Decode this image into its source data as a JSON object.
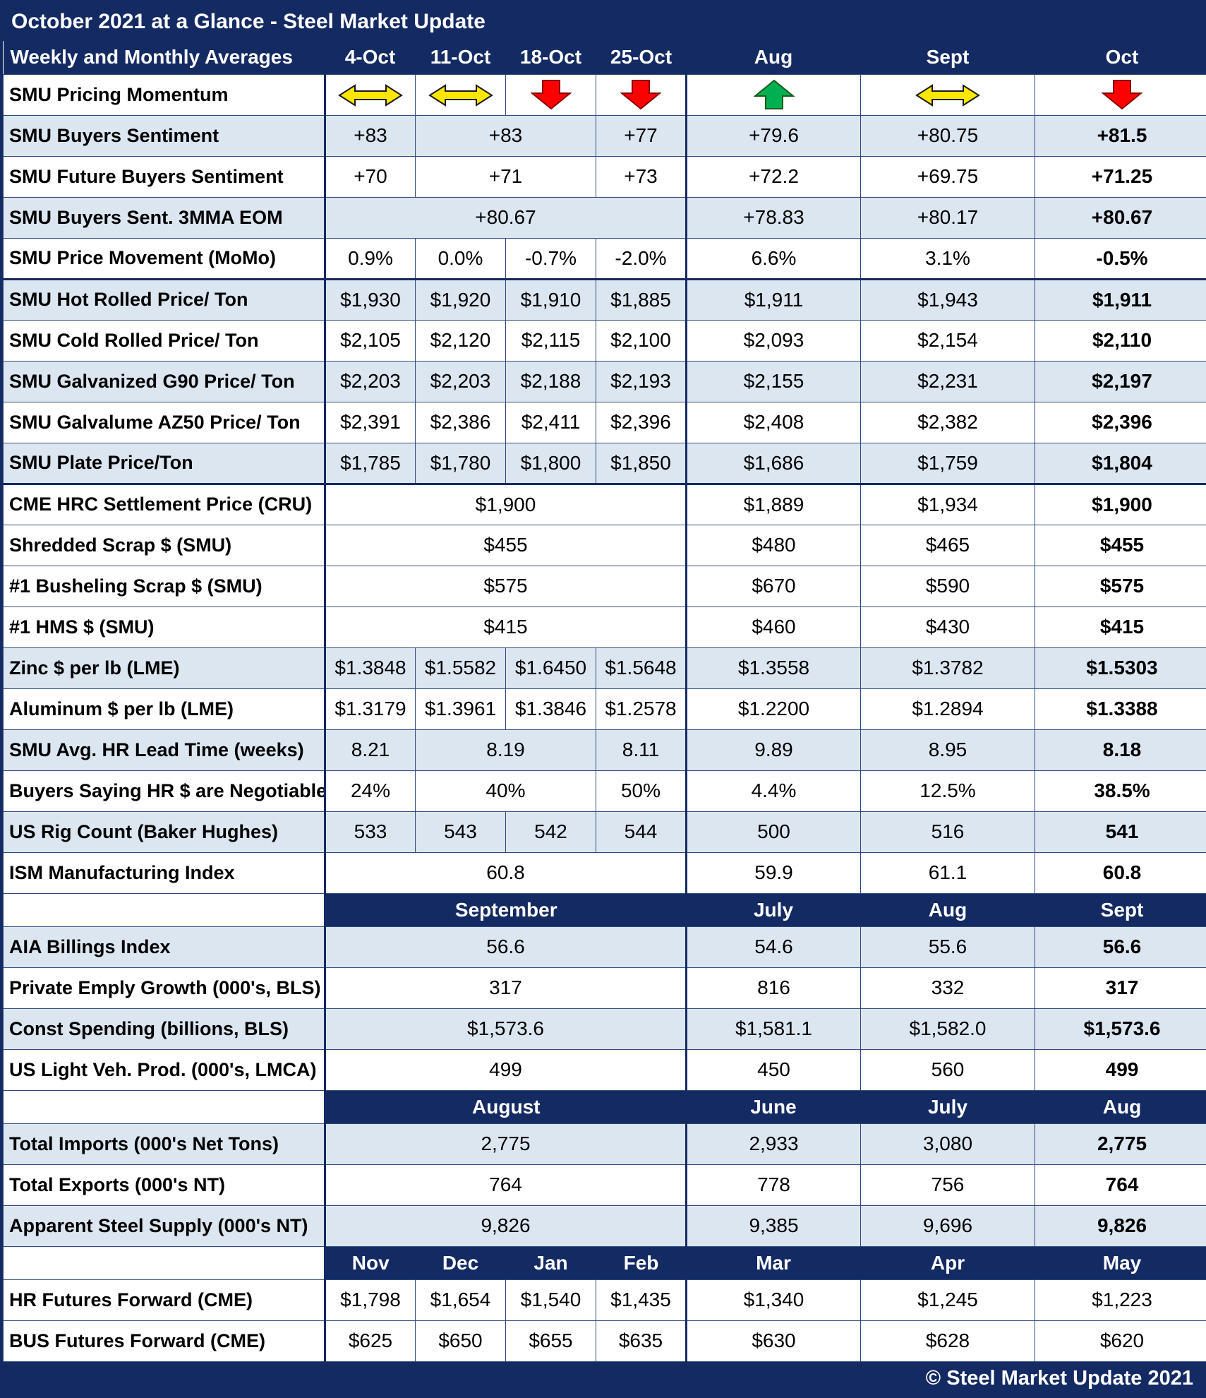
{
  "title": "October 2021 at a Glance - Steel Market Update",
  "footer": "© Steel Market Update 2021",
  "colors": {
    "navy": "#142a63",
    "band_blue": "#dce6f1",
    "arrow_yellow": "#ffe600",
    "arrow_red": "#ff0000",
    "arrow_green": "#00b050"
  },
  "chart_data": {
    "type": "table",
    "title": "October 2021 at a Glance - Steel Market Update",
    "sections": [
      {
        "header": {
          "label": "Weekly and Monthly Averages",
          "label_on_navy": true,
          "cells": [
            {
              "t": "4-Oct"
            },
            {
              "t": "11-Oct"
            },
            {
              "t": "18-Oct"
            },
            {
              "t": "25-Oct"
            },
            {
              "t": "Aug"
            },
            {
              "t": "Sept"
            },
            {
              "t": "Oct"
            }
          ]
        },
        "rows": [
          {
            "label": "SMU Pricing Momentum",
            "band": false,
            "cells": [
              {
                "icon": "sideways-yellow"
              },
              {
                "icon": "sideways-yellow"
              },
              {
                "icon": "down-red"
              },
              {
                "icon": "down-red"
              },
              {
                "icon": "up-green"
              },
              {
                "icon": "sideways-yellow"
              },
              {
                "icon": "down-red"
              }
            ]
          },
          {
            "label": "SMU Buyers Sentiment",
            "band": true,
            "cells": [
              {
                "t": "+83"
              },
              {
                "t": "+83",
                "span": 2
              },
              {
                "t": "+77"
              },
              {
                "t": "+79.6"
              },
              {
                "t": "+80.75"
              },
              {
                "t": "+81.5",
                "bold": true
              }
            ]
          },
          {
            "label": "SMU Future Buyers Sentiment",
            "band": false,
            "cells": [
              {
                "t": "+70"
              },
              {
                "t": "+71",
                "span": 2
              },
              {
                "t": "+73"
              },
              {
                "t": "+72.2"
              },
              {
                "t": "+69.75"
              },
              {
                "t": "+71.25",
                "bold": true
              }
            ]
          },
          {
            "label": "SMU Buyers Sent. 3MMA EOM",
            "band": true,
            "cells": [
              {
                "t": "+80.67",
                "span": 4
              },
              {
                "t": "+78.83"
              },
              {
                "t": "+80.17"
              },
              {
                "t": "+80.67",
                "bold": true
              }
            ]
          },
          {
            "label": "SMU Price Movement (MoMo)",
            "band": false,
            "thick_bottom": true,
            "cells": [
              {
                "t": "0.9%"
              },
              {
                "t": "0.0%"
              },
              {
                "t": "-0.7%"
              },
              {
                "t": "-2.0%"
              },
              {
                "t": "6.6%"
              },
              {
                "t": "3.1%"
              },
              {
                "t": "-0.5%",
                "bold": true
              }
            ]
          },
          {
            "label": "SMU Hot Rolled Price/ Ton",
            "band": true,
            "cells": [
              {
                "t": "$1,930"
              },
              {
                "t": "$1,920"
              },
              {
                "t": "$1,910"
              },
              {
                "t": "$1,885"
              },
              {
                "t": "$1,911"
              },
              {
                "t": "$1,943"
              },
              {
                "t": "$1,911",
                "bold": true
              }
            ]
          },
          {
            "label": "SMU Cold Rolled Price/ Ton",
            "band": false,
            "cells": [
              {
                "t": "$2,105"
              },
              {
                "t": "$2,120"
              },
              {
                "t": "$2,115"
              },
              {
                "t": "$2,100"
              },
              {
                "t": "$2,093"
              },
              {
                "t": "$2,154"
              },
              {
                "t": "$2,110",
                "bold": true
              }
            ]
          },
          {
            "label": "SMU Galvanized G90 Price/ Ton",
            "band": true,
            "cells": [
              {
                "t": "$2,203"
              },
              {
                "t": "$2,203"
              },
              {
                "t": "$2,188"
              },
              {
                "t": "$2,193"
              },
              {
                "t": "$2,155"
              },
              {
                "t": "$2,231"
              },
              {
                "t": "$2,197",
                "bold": true
              }
            ]
          },
          {
            "label": "SMU Galvalume AZ50 Price/ Ton",
            "band": false,
            "cells": [
              {
                "t": "$2,391"
              },
              {
                "t": "$2,386"
              },
              {
                "t": "$2,411"
              },
              {
                "t": "$2,396"
              },
              {
                "t": "$2,408"
              },
              {
                "t": "$2,382"
              },
              {
                "t": "$2,396",
                "bold": true
              }
            ]
          },
          {
            "label": "SMU Plate Price/Ton",
            "band": true,
            "thick_bottom": true,
            "cells": [
              {
                "t": "$1,785"
              },
              {
                "t": "$1,780"
              },
              {
                "t": "$1,800"
              },
              {
                "t": "$1,850"
              },
              {
                "t": "$1,686"
              },
              {
                "t": "$1,759"
              },
              {
                "t": "$1,804",
                "bold": true
              }
            ]
          },
          {
            "label": "CME HRC Settlement Price (CRU)",
            "band": false,
            "cells": [
              {
                "t": "$1,900",
                "span": 4
              },
              {
                "t": "$1,889"
              },
              {
                "t": "$1,934"
              },
              {
                "t": "$1,900",
                "bold": true
              }
            ]
          },
          {
            "label": "Shredded Scrap $ (SMU)",
            "band": false,
            "cells": [
              {
                "t": "$455",
                "span": 4
              },
              {
                "t": "$480"
              },
              {
                "t": "$465"
              },
              {
                "t": "$455",
                "bold": true
              }
            ]
          },
          {
            "label": "#1 Busheling Scrap $ (SMU)",
            "band": false,
            "cells": [
              {
                "t": "$575",
                "span": 4
              },
              {
                "t": "$670"
              },
              {
                "t": "$590"
              },
              {
                "t": "$575",
                "bold": true
              }
            ]
          },
          {
            "label": "#1 HMS $ (SMU)",
            "band": false,
            "cells": [
              {
                "t": "$415",
                "span": 4
              },
              {
                "t": "$460"
              },
              {
                "t": "$430"
              },
              {
                "t": "$415",
                "bold": true
              }
            ]
          },
          {
            "label": "Zinc $ per lb (LME)",
            "band": true,
            "cells": [
              {
                "t": "$1.3848"
              },
              {
                "t": "$1.5582"
              },
              {
                "t": "$1.6450"
              },
              {
                "t": "$1.5648"
              },
              {
                "t": "$1.3558"
              },
              {
                "t": "$1.3782"
              },
              {
                "t": "$1.5303",
                "bold": true
              }
            ]
          },
          {
            "label": "Aluminum $ per lb (LME)",
            "band": false,
            "cells": [
              {
                "t": "$1.3179"
              },
              {
                "t": "$1.3961"
              },
              {
                "t": "$1.3846"
              },
              {
                "t": "$1.2578"
              },
              {
                "t": "$1.2200"
              },
              {
                "t": "$1.2894"
              },
              {
                "t": "$1.3388",
                "bold": true
              }
            ]
          },
          {
            "label": "SMU Avg. HR Lead Time (weeks)",
            "band": true,
            "cells": [
              {
                "t": "8.21"
              },
              {
                "t": "8.19",
                "span": 2
              },
              {
                "t": "8.11"
              },
              {
                "t": "9.89"
              },
              {
                "t": "8.95"
              },
              {
                "t": "8.18",
                "bold": true
              }
            ]
          },
          {
            "label": "Buyers Saying HR $ are Negotiable",
            "band": false,
            "cells": [
              {
                "t": "24%"
              },
              {
                "t": "40%",
                "span": 2
              },
              {
                "t": "50%"
              },
              {
                "t": "4.4%"
              },
              {
                "t": "12.5%"
              },
              {
                "t": "38.5%",
                "bold": true
              }
            ]
          },
          {
            "label": "US Rig Count (Baker Hughes)",
            "band": true,
            "cells": [
              {
                "t": "533"
              },
              {
                "t": "543"
              },
              {
                "t": "542"
              },
              {
                "t": "544"
              },
              {
                "t": "500"
              },
              {
                "t": "516"
              },
              {
                "t": "541",
                "bold": true
              }
            ]
          },
          {
            "label": "ISM Manufacturing Index",
            "band": false,
            "cells": [
              {
                "t": "60.8",
                "span": 4
              },
              {
                "t": "59.9"
              },
              {
                "t": "61.1"
              },
              {
                "t": "60.8",
                "bold": true
              }
            ]
          }
        ]
      },
      {
        "header": {
          "label": "",
          "label_on_navy": false,
          "cells": [
            {
              "t": "September",
              "span": 4
            },
            {
              "t": "July"
            },
            {
              "t": "Aug"
            },
            {
              "t": "Sept"
            }
          ]
        },
        "rows": [
          {
            "label": "AIA Billings Index",
            "band": true,
            "cells": [
              {
                "t": "56.6",
                "span": 4
              },
              {
                "t": "54.6"
              },
              {
                "t": "55.6"
              },
              {
                "t": "56.6",
                "bold": true
              }
            ]
          },
          {
            "label": "Private Emply Growth (000's, BLS)",
            "band": false,
            "cells": [
              {
                "t": "317",
                "span": 4
              },
              {
                "t": "816"
              },
              {
                "t": "332"
              },
              {
                "t": "317",
                "bold": true
              }
            ]
          },
          {
            "label": "Const Spending (billions, BLS)",
            "band": true,
            "cells": [
              {
                "t": "$1,573.6",
                "span": 4
              },
              {
                "t": "$1,581.1"
              },
              {
                "t": "$1,582.0"
              },
              {
                "t": "$1,573.6",
                "bold": true
              }
            ]
          },
          {
            "label": "US Light Veh. Prod. (000's, LMCA)",
            "band": false,
            "cells": [
              {
                "t": "499",
                "span": 4
              },
              {
                "t": "450"
              },
              {
                "t": "560"
              },
              {
                "t": "499",
                "bold": true
              }
            ]
          }
        ]
      },
      {
        "header": {
          "label": "",
          "label_on_navy": false,
          "cells": [
            {
              "t": "August",
              "span": 4
            },
            {
              "t": "June"
            },
            {
              "t": "July"
            },
            {
              "t": "Aug"
            }
          ]
        },
        "rows": [
          {
            "label": "Total Imports (000's Net Tons)",
            "band": true,
            "cells": [
              {
                "t": "2,775",
                "span": 4
              },
              {
                "t": "2,933"
              },
              {
                "t": "3,080"
              },
              {
                "t": "2,775",
                "bold": true
              }
            ]
          },
          {
            "label": "Total Exports (000's NT)",
            "band": false,
            "cells": [
              {
                "t": "764",
                "span": 4
              },
              {
                "t": "778"
              },
              {
                "t": "756"
              },
              {
                "t": "764",
                "bold": true
              }
            ]
          },
          {
            "label": "Apparent Steel Supply (000's NT)",
            "band": true,
            "cells": [
              {
                "t": "9,826",
                "span": 4
              },
              {
                "t": "9,385"
              },
              {
                "t": "9,696"
              },
              {
                "t": "9,826",
                "bold": true
              }
            ]
          }
        ]
      },
      {
        "header": {
          "label": "",
          "label_on_navy": false,
          "cells": [
            {
              "t": "Nov"
            },
            {
              "t": "Dec"
            },
            {
              "t": "Jan"
            },
            {
              "t": "Feb"
            },
            {
              "t": "Mar"
            },
            {
              "t": "Apr"
            },
            {
              "t": "May"
            }
          ]
        },
        "rows": [
          {
            "label": "HR Futures Forward (CME)",
            "band": false,
            "cells": [
              {
                "t": "$1,798"
              },
              {
                "t": "$1,654"
              },
              {
                "t": "$1,540"
              },
              {
                "t": "$1,435"
              },
              {
                "t": "$1,340"
              },
              {
                "t": "$1,245"
              },
              {
                "t": "$1,223"
              }
            ]
          },
          {
            "label": "BUS Futures Forward (CME)",
            "band": false,
            "cells": [
              {
                "t": "$625"
              },
              {
                "t": "$650"
              },
              {
                "t": "$655"
              },
              {
                "t": "$635"
              },
              {
                "t": "$630"
              },
              {
                "t": "$628"
              },
              {
                "t": "$620"
              }
            ]
          }
        ]
      }
    ]
  }
}
